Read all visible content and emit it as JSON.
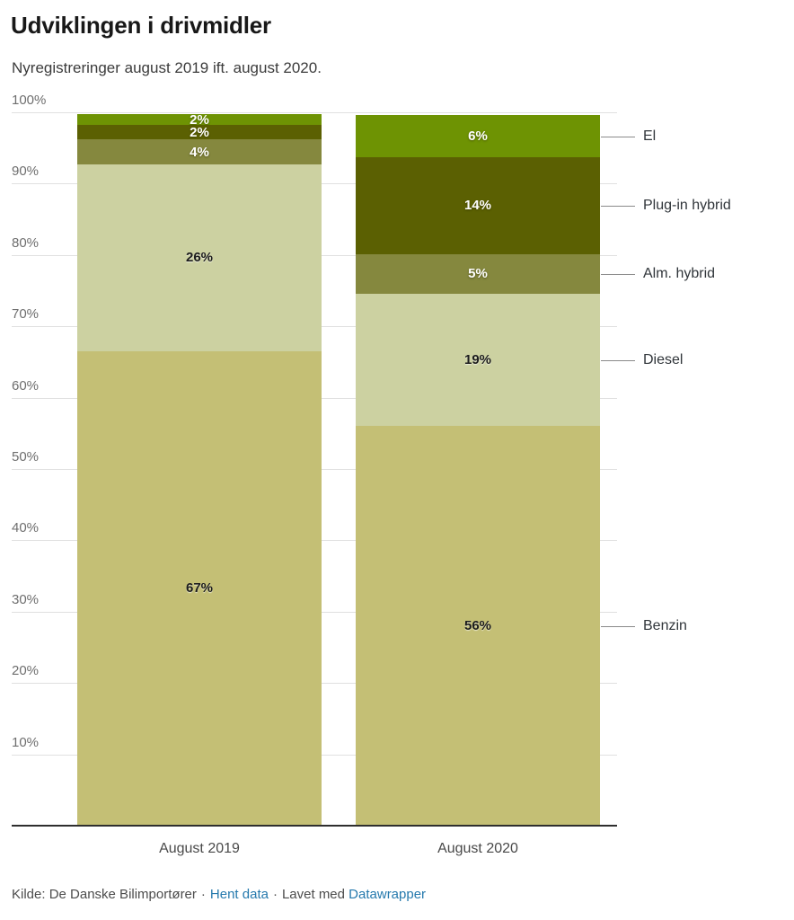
{
  "header": {
    "title": "Udviklingen i drivmidler",
    "subtitle": "Nyregistreringer august 2019 ift. august 2020."
  },
  "chart_data": {
    "type": "bar",
    "stacked": true,
    "orientation": "vertical-columns",
    "title": "Udviklingen i drivmidler",
    "subtitle": "Nyregistreringer august 2019 ift. august 2020.",
    "categories": [
      "August 2019",
      "August 2020"
    ],
    "stack_order": "top-to-bottom",
    "series": [
      {
        "name": "El",
        "color": "#6e9303",
        "values": [
          2,
          6
        ],
        "display_labels": [
          "2%",
          "6%"
        ],
        "plot_values": [
          1.5,
          5.9
        ],
        "label_style": "light"
      },
      {
        "name": "Plug-in hybrid",
        "color": "#5b6002",
        "values": [
          2,
          14
        ],
        "display_labels": [
          "2%",
          "14%"
        ],
        "plot_values": [
          2.0,
          13.6
        ],
        "label_style": "light"
      },
      {
        "name": "Alm. hybrid",
        "color": "#85883e",
        "values": [
          4,
          5
        ],
        "display_labels": [
          "4%",
          "5%"
        ],
        "plot_values": [
          3.5,
          5.5
        ],
        "label_style": "light"
      },
      {
        "name": "Diesel",
        "color": "#ccd1a1",
        "values": [
          26,
          19
        ],
        "display_labels": [
          "26%",
          "19%"
        ],
        "plot_values": [
          26.2,
          18.6
        ],
        "label_style": "dark"
      },
      {
        "name": "Benzin",
        "color": "#c4bf75",
        "values": [
          67,
          56
        ],
        "display_labels": [
          "67%",
          "56%"
        ],
        "plot_values": [
          66.5,
          56.0
        ],
        "label_style": "dark"
      }
    ],
    "ylabel": "",
    "xlabel": "",
    "ylim": [
      0,
      100
    ],
    "yticks": [
      "10%",
      "20%",
      "30%",
      "40%",
      "50%",
      "60%",
      "70%",
      "80%",
      "90%",
      "100%"
    ],
    "grid": true,
    "legend_position": "right-of-2020-bar",
    "axis_color": "#2e2e2e",
    "gridline_color": "#e0e0e0"
  },
  "footer": {
    "source_text": "Kilde: De Danske Bilimportører",
    "separator": "·",
    "hent_data_label": "Hent data",
    "made_with_text": "Lavet med",
    "datawrapper_label": "Datawrapper",
    "link_color": "#2579ad"
  }
}
